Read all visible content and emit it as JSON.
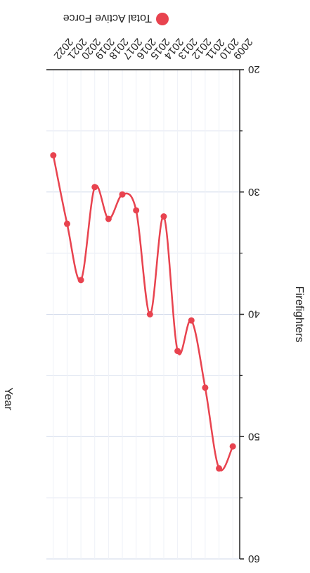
{
  "chart_data": {
    "type": "line",
    "title": "",
    "xlabel": "Year",
    "ylabel": "Firefighters",
    "ylim": [
      20,
      60
    ],
    "y_ticks": [
      20,
      30,
      40,
      50,
      60
    ],
    "grid": true,
    "legend_position": "top",
    "categories": [
      "2009",
      "2010",
      "2011",
      "2012",
      "2013",
      "2014",
      "2015",
      "2016",
      "2017",
      "2018",
      "2019",
      "2020",
      "2021",
      "2022"
    ],
    "series": [
      {
        "name": "Total Active Force",
        "color": "#e8434f",
        "values": [
          50.8,
          52.6,
          46.0,
          40.5,
          43.0,
          32.0,
          40.0,
          31.5,
          30.2,
          32.2,
          29.6,
          37.2,
          32.6,
          27.0
        ]
      }
    ]
  }
}
